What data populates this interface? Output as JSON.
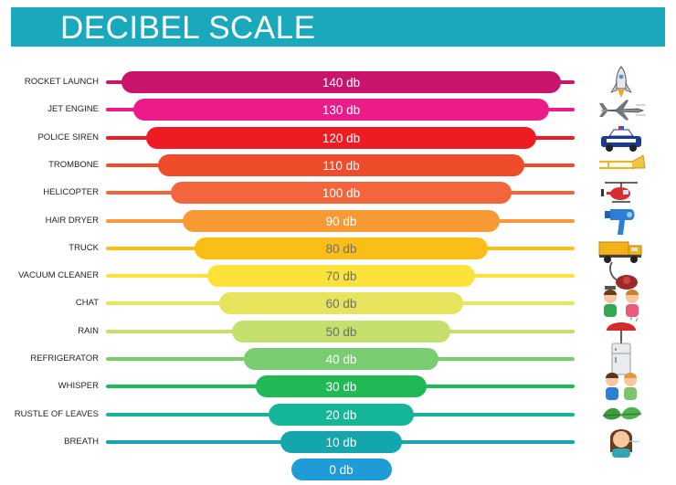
{
  "header": {
    "title": "DECIBEL SCALE"
  },
  "rows": [
    {
      "label": "ROCKET LAUNCH",
      "value": "140 db",
      "color": "#c8146b",
      "icon": "rocket-icon"
    },
    {
      "label": "JET ENGINE",
      "value": "130 db",
      "color": "#ec1b8a",
      "icon": "jet-plane-icon"
    },
    {
      "label": "POLICE SIREN",
      "value": "120 db",
      "color": "#ee1b24",
      "icon": "police-car-icon"
    },
    {
      "label": "TROMBONE",
      "value": "110 db",
      "color": "#ef4c2c",
      "icon": "trombone-icon"
    },
    {
      "label": "HELICOPTER",
      "value": "100 db",
      "color": "#f3653d",
      "icon": "helicopter-icon"
    },
    {
      "label": "HAIR DRYER",
      "value": "90 db",
      "color": "#f79a36",
      "icon": "hair-dryer-icon"
    },
    {
      "label": "TRUCK",
      "value": "80 db",
      "color": "#fbbd18",
      "icon": "truck-icon"
    },
    {
      "label": "VACUUM CLEANER",
      "value": "70 db",
      "color": "#fde23b",
      "icon": "vacuum-cleaner-icon"
    },
    {
      "label": "CHAT",
      "value": "60 db",
      "color": "#e6e45c",
      "icon": "chatting-people-icon"
    },
    {
      "label": "RAIN",
      "value": "50 db",
      "color": "#c4df6c",
      "icon": "umbrella-rain-icon"
    },
    {
      "label": "REFRIGERATOR",
      "value": "40 db",
      "color": "#79cc6f",
      "icon": "refrigerator-icon"
    },
    {
      "label": "WHISPER",
      "value": "30 db",
      "color": "#1fba56",
      "icon": "whispering-people-icon"
    },
    {
      "label": "RUSTLE OF LEAVES",
      "value": "20 db",
      "color": "#15b697",
      "icon": "leaves-icon"
    },
    {
      "label": "BREATH",
      "value": "10 db",
      "color": "#14a5ad",
      "icon": "breathing-girl-icon"
    },
    {
      "label": "",
      "value": "0 db",
      "color": "#1f9bd8",
      "icon": ""
    }
  ]
}
